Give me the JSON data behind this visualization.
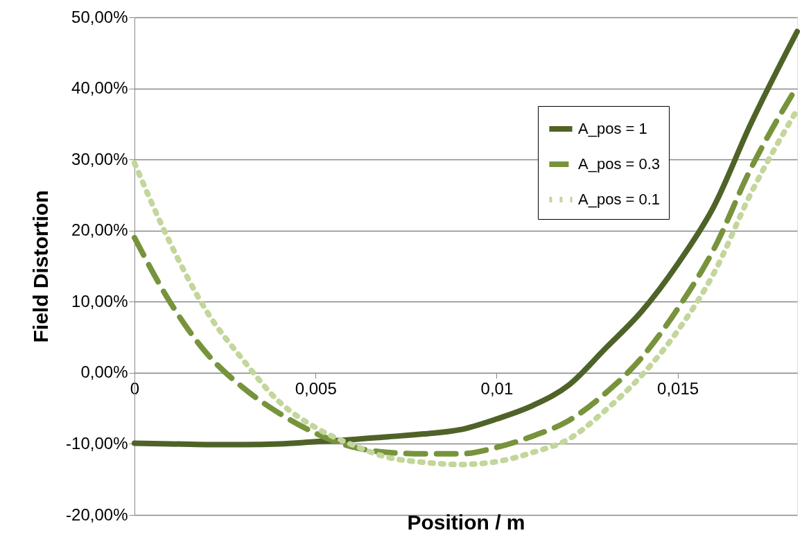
{
  "chart_data": {
    "type": "line",
    "xlabel": "Position / m",
    "ylabel": "Field Distortion",
    "x": [
      0,
      0.001,
      0.002,
      0.003,
      0.004,
      0.005,
      0.006,
      0.007,
      0.008,
      0.009,
      0.01,
      0.011,
      0.012,
      0.013,
      0.014,
      0.015,
      0.016,
      0.017,
      0.0183
    ],
    "series": [
      {
        "name": "A_pos = 1",
        "color": "#4f6228",
        "line_style": "solid",
        "values": [
          -0.099,
          -0.1,
          -0.101,
          -0.101,
          -0.1,
          -0.097,
          -0.094,
          -0.09,
          -0.086,
          -0.08,
          -0.065,
          -0.046,
          -0.017,
          0.034,
          0.086,
          0.153,
          0.234,
          0.348,
          0.48
        ]
      },
      {
        "name": "A_pos = 0.3",
        "color": "#77933c",
        "line_style": "dashed",
        "values": [
          0.19,
          0.098,
          0.027,
          -0.021,
          -0.057,
          -0.085,
          -0.104,
          -0.112,
          -0.114,
          -0.114,
          -0.105,
          -0.089,
          -0.067,
          -0.029,
          0.021,
          0.09,
          0.174,
          0.285,
          0.403
        ]
      },
      {
        "name": "A_pos = 0.1",
        "color": "#c3d69b",
        "line_style": "dotted",
        "values": [
          0.295,
          0.181,
          0.086,
          0.018,
          -0.041,
          -0.077,
          -0.101,
          -0.119,
          -0.126,
          -0.129,
          -0.125,
          -0.112,
          -0.093,
          -0.053,
          -0.004,
          0.059,
          0.14,
          0.25,
          0.37
        ]
      }
    ],
    "xlim": [
      0,
      0.0183
    ],
    "xticks": [
      {
        "value": 0,
        "label": "0"
      },
      {
        "value": 0.005,
        "label": "0,005"
      },
      {
        "value": 0.01,
        "label": "0,01"
      },
      {
        "value": 0.015,
        "label": "0,015"
      }
    ],
    "ylim": [
      -0.2,
      0.5
    ],
    "yticks": [
      {
        "value": -0.2,
        "label": "-20,00%"
      },
      {
        "value": -0.1,
        "label": "-10,00%"
      },
      {
        "value": 0,
        "label": "0,00%"
      },
      {
        "value": 0.1,
        "label": "10,00%"
      },
      {
        "value": 0.2,
        "label": "20,00%"
      },
      {
        "value": 0.3,
        "label": "30,00%"
      },
      {
        "value": 0.4,
        "label": "40,00%"
      },
      {
        "value": 0.5,
        "label": "50,00%"
      }
    ],
    "grid": "y",
    "legend": "top right"
  }
}
